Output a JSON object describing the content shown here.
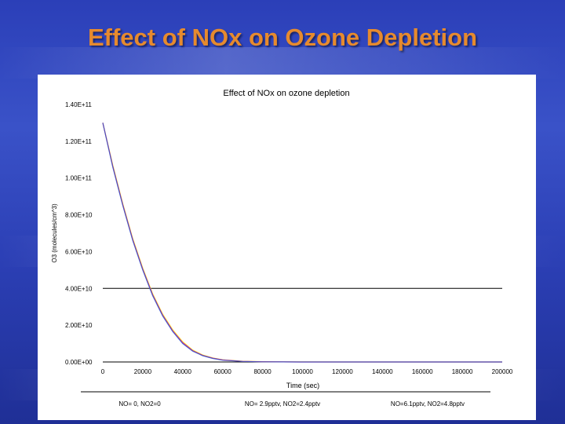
{
  "slide": {
    "title": "Effect of NOx on Ozone Depletion"
  },
  "chart_data": {
    "type": "line",
    "title": "Effect of NOx on ozone depletion",
    "xlabel": "Time (sec)",
    "ylabel": "O3 (molecules/cm^3)",
    "xlim": [
      0,
      200000
    ],
    "ylim": [
      0,
      140000000000
    ],
    "xticks": [
      "0",
      "20000",
      "40000",
      "60000",
      "80000",
      "100000",
      "120000",
      "140000",
      "160000",
      "180000",
      "200000"
    ],
    "yticks": [
      "0.00E+00",
      "2.00E+10",
      "4.00E+10",
      "6.00E+10",
      "8.00E+10",
      "1.00E+11",
      "1.20E+11",
      "1.40E+11"
    ],
    "grid": false,
    "legend_position": "bottom",
    "x": [
      0,
      5000,
      10000,
      15000,
      20000,
      25000,
      30000,
      35000,
      40000,
      45000,
      50000,
      55000,
      60000,
      70000,
      80000,
      90000,
      100000,
      120000,
      140000,
      160000,
      180000,
      200000
    ],
    "series": [
      {
        "name": "NO= 0, NO2=0",
        "color": "#ffff00",
        "values": [
          130000000000.0,
          107000000000.0,
          86000000000.0,
          67000000000.0,
          51000000000.0,
          37000000000.0,
          26000000000.0,
          17500000000.0,
          11000000000.0,
          6500000000.0,
          3800000000.0,
          2200000000.0,
          1200000000.0,
          400000000.0,
          150000000.0,
          60000000.0,
          30000000.0,
          10000000.0,
          5000000.0,
          2000000.0,
          1000000.0,
          500000.0
        ]
      },
      {
        "name": "NO= 2.9pptv, NO2=2.4pptv",
        "color": "#cc0088",
        "values": [
          130000000000.0,
          106500000000.0,
          85500000000.0,
          66500000000.0,
          50500000000.0,
          36500000000.0,
          25500000000.0,
          17000000000.0,
          10500000000.0,
          6200000000.0,
          3600000000.0,
          2100000000.0,
          1100000000.0,
          350000000.0,
          120000000.0,
          50000000.0,
          20000000.0,
          8000000.0,
          3000000.0,
          1000000.0,
          500000.0,
          200000.0
        ]
      },
      {
        "name": "NO=6.1pptv, NO2=4.8pptv",
        "color": "#3355cc",
        "values": [
          130000000000.0,
          106000000000.0,
          85000000000.0,
          66000000000.0,
          50000000000.0,
          36000000000.0,
          25000000000.0,
          16500000000.0,
          10000000000.0,
          5900000000.0,
          3400000000.0,
          1900000000.0,
          1000000000.0,
          300000000.0,
          100000000.0,
          40000000.0,
          15000000.0,
          6000000.0,
          2000000.0,
          800000.0,
          300000.0,
          100000.0
        ]
      }
    ],
    "reference_line": {
      "y": 40000000000
    }
  }
}
